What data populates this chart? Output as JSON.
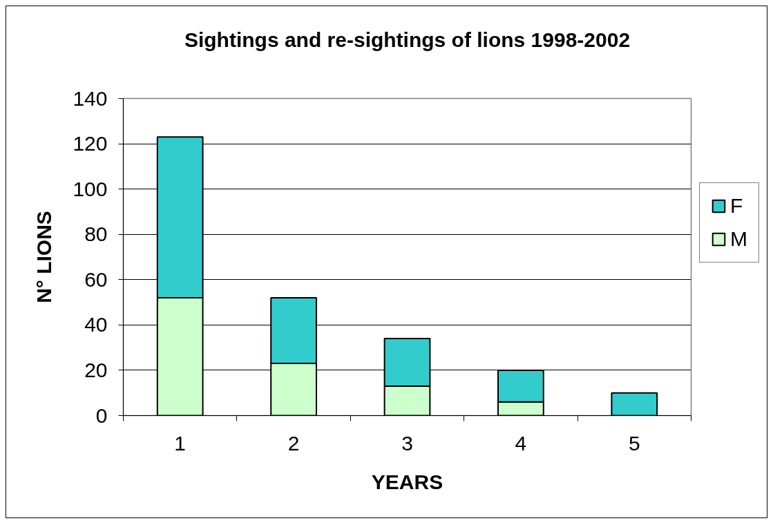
{
  "chart_data": {
    "type": "bar",
    "title": "Sightings and re-sightings of lions 1998-2002",
    "xlabel": "YEARS",
    "ylabel": "N° LIONS",
    "categories": [
      "1",
      "2",
      "3",
      "4",
      "5"
    ],
    "stacked": true,
    "series": [
      {
        "name": "M",
        "color": "#ccffcc",
        "values": [
          52,
          23,
          13,
          6,
          null
        ]
      },
      {
        "name": "F",
        "color": "#33cccc",
        "values": [
          71,
          29,
          21,
          14,
          10
        ]
      }
    ],
    "ylim": [
      0,
      140
    ],
    "yticks": [
      0,
      20,
      40,
      60,
      80,
      100,
      120,
      140
    ],
    "grid": "y",
    "legend": "right"
  }
}
